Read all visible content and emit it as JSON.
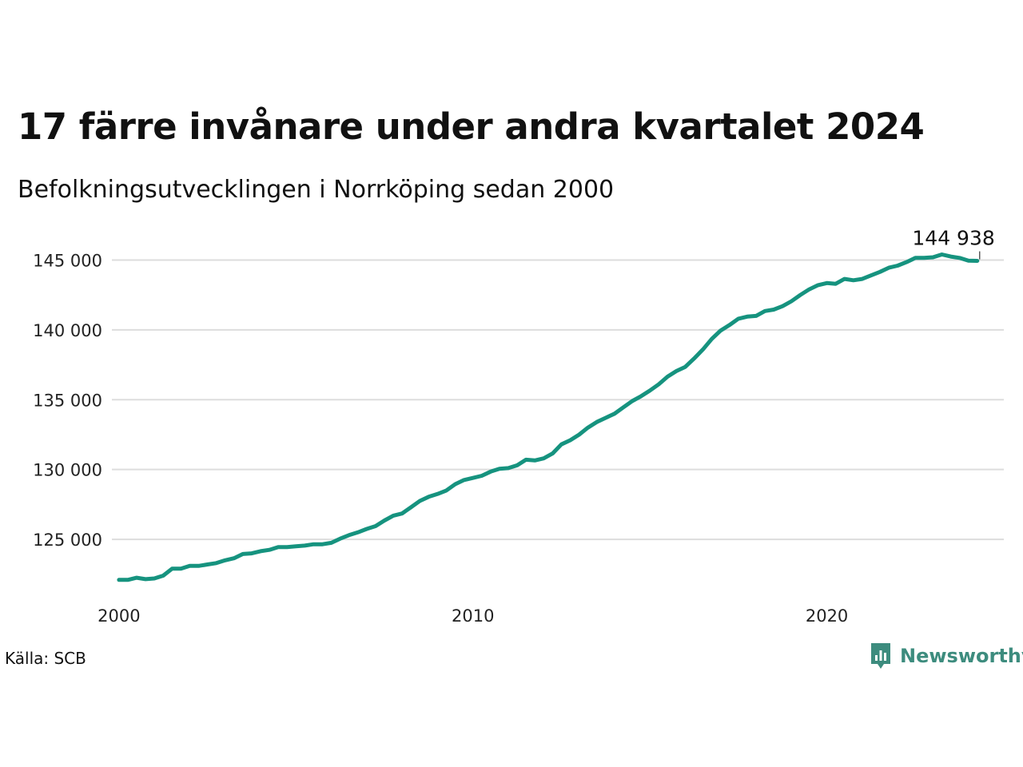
{
  "title": "17 färre invånare under andra kvartalet 2024",
  "subtitle": "Befolkningsutvecklingen i Norrköping sedan 2000",
  "source": "Källa: SCB",
  "logo": {
    "text": "Newsworthy",
    "icon": "newsworthy-logo-icon",
    "color": "#3d8c7e"
  },
  "chart_data": {
    "type": "line",
    "title": "17 färre invånare under andra kvartalet 2024",
    "subtitle": "Befolkningsutvecklingen i Norrköping sedan 2000",
    "xlabel": "",
    "ylabel": "",
    "xlim": [
      1999.8,
      2025.0
    ],
    "ylim": [
      121000,
      146800
    ],
    "grid": true,
    "legend": "none",
    "line_color": "#16937f",
    "x_ticks": [
      2000,
      2010,
      2020
    ],
    "x_tick_labels": [
      "2000",
      "2010",
      "2020"
    ],
    "y_ticks": [
      125000,
      130000,
      135000,
      140000,
      145000
    ],
    "y_tick_labels": [
      "125 000",
      "130 000",
      "135 000",
      "140 000",
      "145 000"
    ],
    "end_label": "144 938",
    "series": [
      {
        "x": [
          2000.0,
          2000.25,
          2000.5,
          2000.75,
          2001.0,
          2001.25,
          2001.5,
          2001.75,
          2002.0,
          2002.25,
          2002.5,
          2002.75,
          2003.0,
          2003.25,
          2003.5,
          2003.75,
          2004.0,
          2004.25,
          2004.5,
          2004.75,
          2005.0,
          2005.25,
          2005.5,
          2005.75,
          2006.0,
          2006.25,
          2006.5,
          2006.75,
          2007.0,
          2007.25,
          2007.5,
          2007.75,
          2008.0,
          2008.25,
          2008.5,
          2008.75,
          2009.0,
          2009.25,
          2009.5,
          2009.75,
          2010.0,
          2010.25,
          2010.5,
          2010.75,
          2011.0,
          2011.25,
          2011.5,
          2011.75,
          2012.0,
          2012.25,
          2012.5,
          2012.75,
          2013.0,
          2013.25,
          2013.5,
          2013.75,
          2014.0,
          2014.25,
          2014.5,
          2014.75,
          2015.0,
          2015.25,
          2015.5,
          2015.75,
          2016.0,
          2016.25,
          2016.5,
          2016.75,
          2017.0,
          2017.25,
          2017.5,
          2017.75,
          2018.0,
          2018.25,
          2018.5,
          2018.75,
          2019.0,
          2019.25,
          2019.5,
          2019.75,
          2020.0,
          2020.25,
          2020.5,
          2020.75,
          2021.0,
          2021.25,
          2021.5,
          2021.75,
          2022.0,
          2022.25,
          2022.5,
          2022.75,
          2023.0,
          2023.25,
          2023.5,
          2023.75,
          2024.0,
          2024.25
        ],
        "values": [
          122100,
          122100,
          122250,
          122150,
          122200,
          122400,
          122900,
          122900,
          123100,
          123100,
          123200,
          123300,
          123500,
          123650,
          123950,
          124000,
          124150,
          124250,
          124450,
          124450,
          124500,
          124550,
          124650,
          124650,
          124750,
          125050,
          125300,
          125500,
          125750,
          125950,
          126350,
          126700,
          126850,
          127300,
          127750,
          128050,
          128250,
          128500,
          128950,
          129250,
          129400,
          129550,
          129850,
          130050,
          130100,
          130300,
          130700,
          130650,
          130800,
          131150,
          131800,
          132100,
          132500,
          133000,
          133400,
          133700,
          134000,
          134450,
          134900,
          135250,
          135650,
          136100,
          136650,
          137050,
          137350,
          137950,
          138600,
          139350,
          139950,
          140350,
          140800,
          140950,
          141000,
          141350,
          141450,
          141700,
          142050,
          142500,
          142900,
          143200,
          143350,
          143300,
          143650,
          143550,
          143650,
          143900,
          144150,
          144450,
          144600,
          144850,
          145150,
          145150,
          145200,
          145400,
          145250,
          145150,
          144955,
          144938
        ]
      }
    ]
  }
}
